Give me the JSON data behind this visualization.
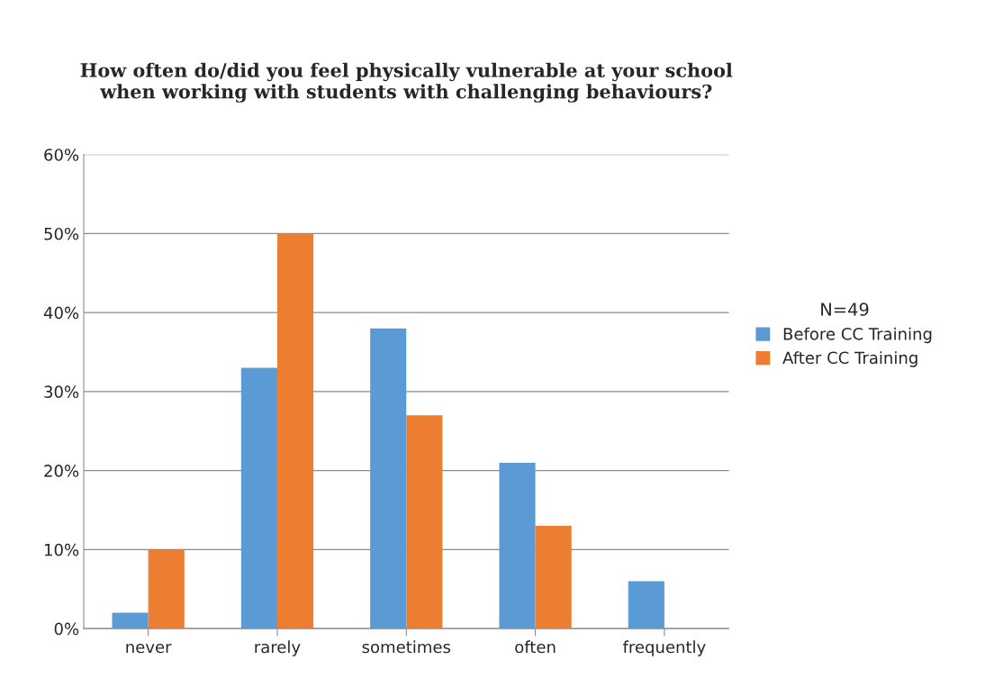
{
  "chart_data": {
    "type": "bar",
    "title": "How often do/did you feel physically vulnerable at your school\nwhen working with students with challenging behaviours?",
    "categories": [
      "never",
      "rarely",
      "sometimes",
      "often",
      "frequently"
    ],
    "series": [
      {
        "name": "Before CC Training",
        "color": "#5b9bd5",
        "values": [
          2,
          33,
          38,
          21,
          6
        ]
      },
      {
        "name": "After CC Training",
        "color": "#ed7d31",
        "values": [
          10,
          50,
          27,
          13,
          0
        ]
      }
    ],
    "ylim": [
      0,
      60
    ],
    "yticks": [
      {
        "value": 0,
        "label": "0%"
      },
      {
        "value": 10,
        "label": "10%"
      },
      {
        "value": 20,
        "label": "20%"
      },
      {
        "value": 30,
        "label": "30%"
      },
      {
        "value": 40,
        "label": "40%"
      },
      {
        "value": 50,
        "label": "50%"
      },
      {
        "value": 60,
        "label": "60%"
      }
    ],
    "grid": "y",
    "legend": "right",
    "legend_title": "N=49"
  }
}
